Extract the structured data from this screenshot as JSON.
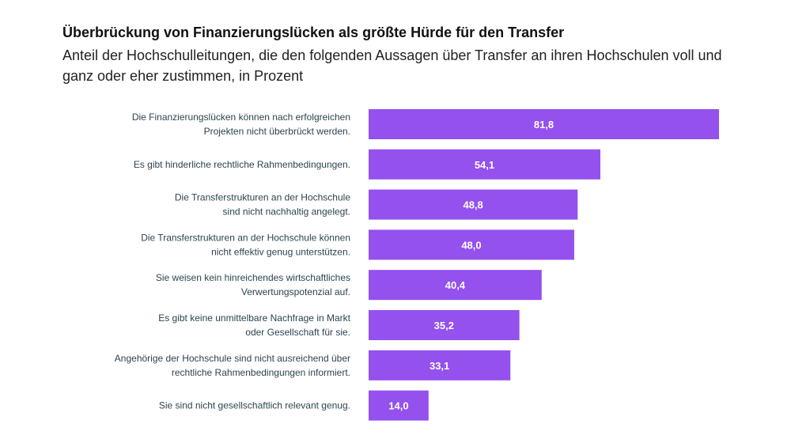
{
  "chart_data": {
    "type": "bar",
    "orientation": "horizontal",
    "title": "Überbrückung von Finanzierungslücken als größte Hürde für den Transfer",
    "subtitle": "Anteil der Hochschulleitungen, die den folgenden Aussagen über Transfer an ihren Hochschulen voll und ganz oder eher zustimmen, in Prozent",
    "categories": [
      [
        "Die Finanzierungslücken können nach erfolgreichen",
        "Projekten nicht überbrückt werden."
      ],
      [
        "Es gibt hinderliche rechtliche Rahmenbedingungen."
      ],
      [
        "Die Transferstrukturen an der Hochschule",
        "sind nicht nachhaltig angelegt."
      ],
      [
        "Die Transferstrukturen an der Hochschule können",
        "nicht effektiv genug unterstützen."
      ],
      [
        "Sie weisen kein hinreichendes wirtschaftliches",
        "Verwertungspotenzial auf."
      ],
      [
        "Es gibt keine unmittelbare Nachfrage in Markt",
        "oder Gesellschaft für sie."
      ],
      [
        "Angehörige der Hochschule sind nicht ausreichend über",
        "rechtliche Rahmenbedingungen informiert."
      ],
      [
        "Sie sind nicht gesellschaftlich relevant genug."
      ]
    ],
    "values": [
      81.8,
      54.1,
      48.8,
      48.0,
      40.4,
      35.2,
      33.1,
      14.0
    ],
    "value_labels": [
      "81,8",
      "54,1",
      "48,8",
      "48,0",
      "40,4",
      "35,2",
      "33,1",
      "14,0"
    ],
    "xlim": [
      0,
      81.8
    ],
    "bar_color": "#9451ed",
    "grid": false,
    "legend": "none"
  }
}
